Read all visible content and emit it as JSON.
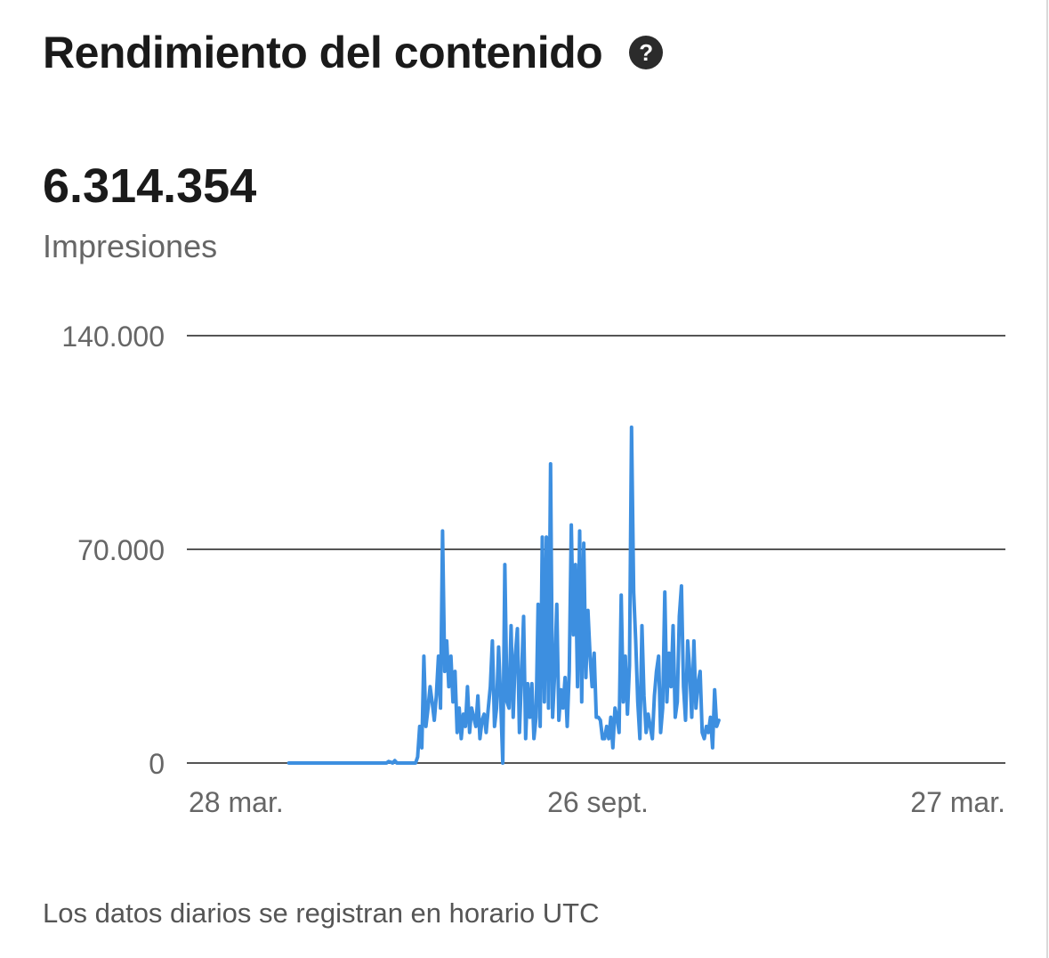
{
  "header": {
    "title": "Rendimiento del contenido",
    "help_icon": "question-circle-icon"
  },
  "metric": {
    "value": "6.314.354",
    "label": "Impresiones"
  },
  "footnote": "Los datos diarios se registran en horario UTC",
  "colors": {
    "line": "#3d8fe0",
    "grid": "#555555",
    "tick_text": "#666666"
  },
  "chart_data": {
    "type": "line",
    "title": "",
    "xlabel": "",
    "ylabel": "",
    "ylim": [
      0,
      140000
    ],
    "yticks": [
      0,
      70000,
      140000
    ],
    "ytick_labels": [
      "0",
      "70.000",
      "140.000"
    ],
    "xlim": [
      "2023-03-28",
      "2024-03-27"
    ],
    "xtick_labels": [
      "28 mar.",
      "26 sept.",
      "27 mar."
    ],
    "xtick_dates": [
      "2023-03-28",
      "2023-09-26",
      "2024-03-27"
    ],
    "grid": true,
    "series": [
      {
        "start_date": "2023-04-17",
        "values": [
          0,
          0,
          0,
          0,
          0,
          0,
          0,
          0,
          0,
          0,
          0,
          0,
          0,
          0,
          0,
          0,
          0,
          0,
          0,
          0,
          0,
          0,
          0,
          0,
          0,
          0,
          0,
          0,
          0,
          0,
          0,
          0,
          0,
          0,
          0,
          0,
          0,
          0,
          0,
          0,
          0,
          0,
          0,
          0,
          0,
          0,
          0,
          0,
          500,
          300,
          0,
          800,
          0,
          0,
          0,
          0,
          0,
          0,
          0,
          0,
          0,
          0,
          2000,
          12000,
          5000,
          35000,
          12000,
          18000,
          25000,
          20000,
          14000,
          22000,
          35000,
          18000,
          76000,
          30000,
          40000,
          25000,
          35000,
          20000,
          30000,
          10000,
          18000,
          8000,
          16000,
          12000,
          25000,
          10000,
          18000,
          15000,
          12000,
          22000,
          8000,
          14000,
          16000,
          10000,
          18000,
          25000,
          40000,
          12000,
          18000,
          38000,
          20000,
          0,
          65000,
          20000,
          18000,
          45000,
          15000,
          35000,
          44000,
          10000,
          28000,
          48000,
          8000,
          26000,
          15000,
          26000,
          8000,
          15000,
          52000,
          12000,
          74000,
          20000,
          74000,
          18000,
          98000,
          15000,
          30000,
          52000,
          14000,
          24000,
          18000,
          28000,
          12000,
          30000,
          78000,
          42000,
          65000,
          25000,
          76000,
          20000,
          72000,
          28000,
          50000,
          35000,
          25000,
          36000,
          15000,
          15000,
          14000,
          8000,
          8000,
          12000,
          8000,
          15000,
          5000,
          18000,
          15000,
          10000,
          55000,
          20000,
          35000,
          16000,
          32000,
          110000,
          56000,
          40000,
          20000,
          8000,
          45000,
          22000,
          10000,
          16000,
          12000,
          8000,
          22000,
          30000,
          35000,
          10000,
          18000,
          56000,
          20000,
          36000,
          25000,
          45000,
          15000,
          20000,
          48000,
          58000,
          25000,
          14000,
          40000,
          30000,
          15000,
          40000,
          18000,
          26000,
          30000,
          10000,
          8000,
          12000,
          10000,
          15000,
          5000,
          24000,
          12000,
          14000
        ]
      }
    ]
  }
}
